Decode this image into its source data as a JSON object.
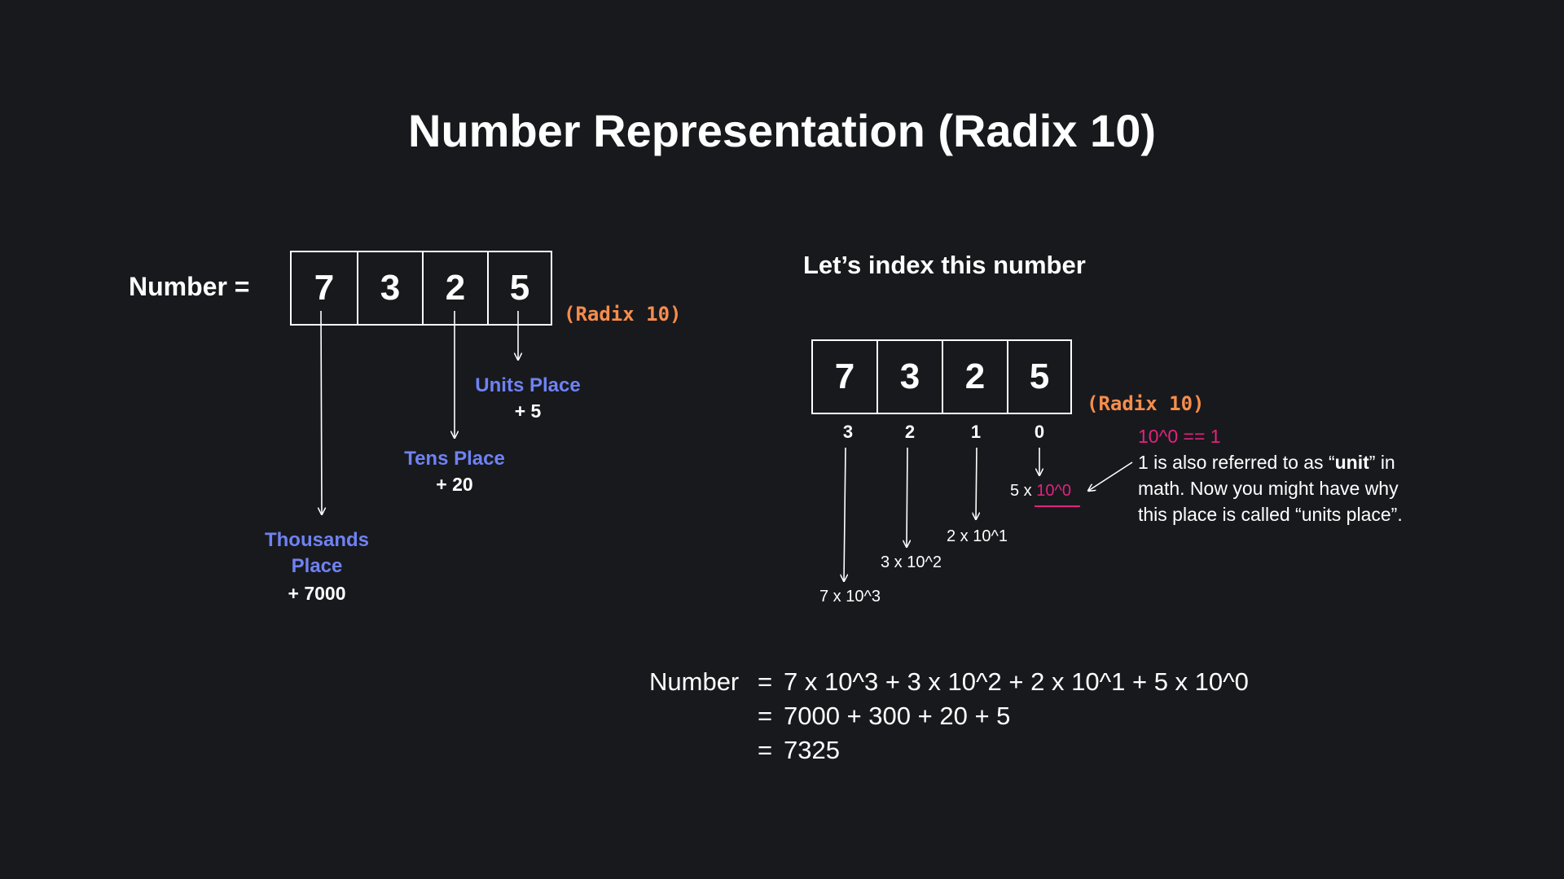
{
  "title": "Number Representation (Radix 10)",
  "left": {
    "number_label": "Number  =",
    "digits": [
      "7",
      "3",
      "2",
      "5"
    ],
    "radix": "(Radix 10)",
    "places": {
      "thousands": {
        "label_line1": "Thousands",
        "label_line2": "Place",
        "value": "+ 7000"
      },
      "tens": {
        "label": "Tens Place",
        "value": "+ 20"
      },
      "units": {
        "label": "Units Place",
        "value": "+ 5"
      }
    }
  },
  "right": {
    "heading": "Let’s index this number",
    "digits": [
      "7",
      "3",
      "2",
      "5"
    ],
    "radix": "(Radix 10)",
    "indices": [
      "3",
      "2",
      "1",
      "0"
    ],
    "terms": {
      "t3": "7 x 10^3",
      "t2": "3 x 10^2",
      "t1": "2 x 10^1",
      "t0_prefix": "5 x",
      "t0_power": "10^0"
    },
    "note": {
      "equation": "10^0 == 1",
      "line1_a": "1 is also referred to as “",
      "line1_bold": "unit",
      "line1_b": "” in",
      "line2": "math. Now you might have why",
      "line3": "this place is called “units place”."
    }
  },
  "equation": {
    "lhs": "Number",
    "eq": "=",
    "line1": "7 x 10^3 + 3 x 10^2 + 2 x 10^1 + 5 x 10^0",
    "line2": "7000 + 300 + 20 +  5",
    "line3": "7325"
  },
  "colors": {
    "background": "#18191d",
    "place_label": "#6f82f3",
    "radix": "#f68d4c",
    "highlight": "#e2237e"
  }
}
